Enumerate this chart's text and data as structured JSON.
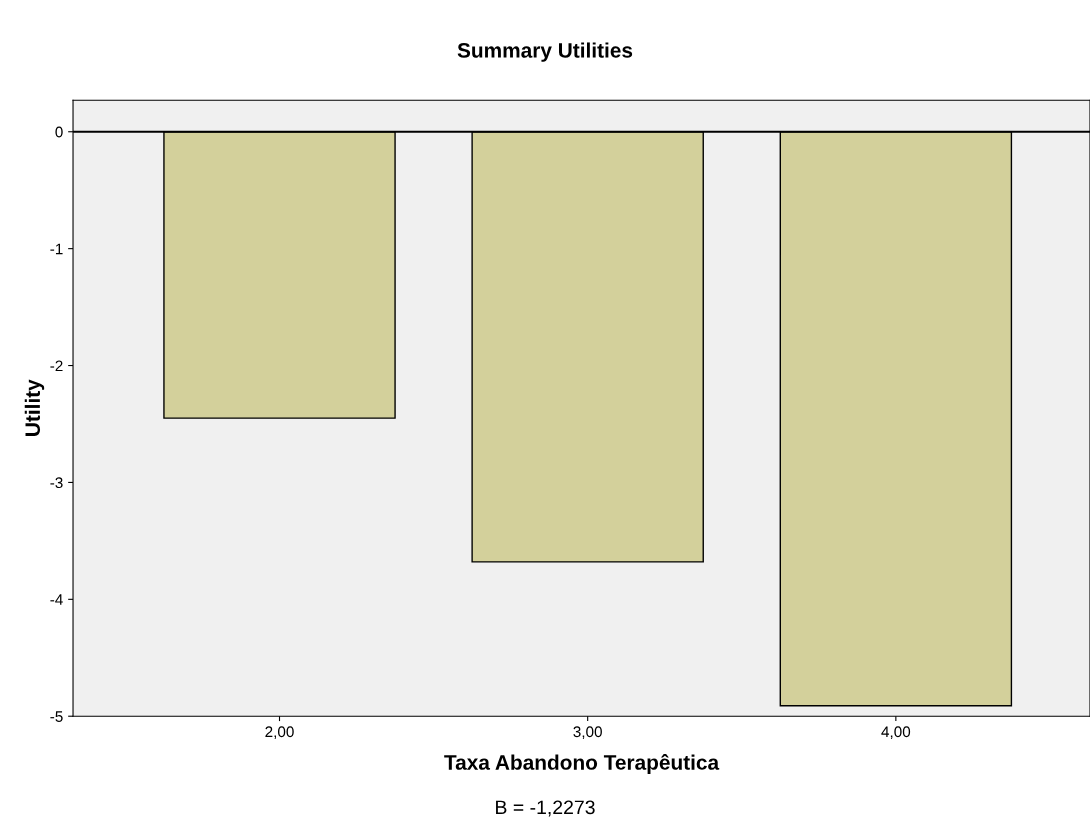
{
  "chart_data": {
    "type": "bar",
    "title": "Summary Utilities",
    "xlabel": "Taxa Abandono Terapêutica",
    "ylabel": "Utility",
    "categories": [
      "2,00",
      "3,00",
      "4,00"
    ],
    "values": [
      -2.45,
      -3.68,
      -4.91
    ],
    "color": "#d3d09b",
    "ylim": [
      -5,
      0.27
    ],
    "yticks": [
      0,
      -1,
      -2,
      -3,
      -4,
      -5
    ],
    "ref_lines": [
      {
        "axis": "y",
        "value": 0,
        "color": "#000000"
      }
    ],
    "annotations": [
      "B = -1,2273"
    ],
    "grid": false,
    "legend": false
  }
}
